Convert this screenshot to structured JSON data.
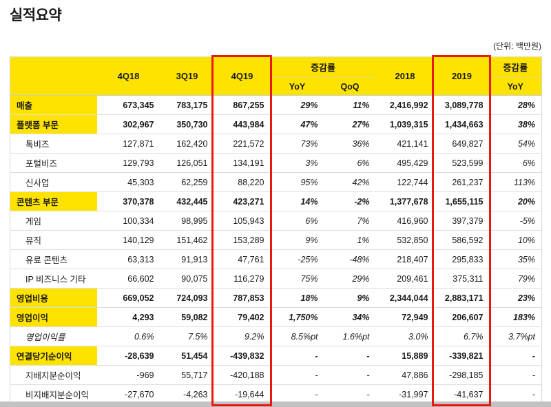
{
  "page": {
    "title": "실적요약",
    "unit_note": "(단위: 백만원)"
  },
  "colors": {
    "header_yellow": "#FFE300",
    "highlight_red": "#E8190F"
  },
  "table": {
    "header": {
      "quarters": [
        "4Q18",
        "3Q19",
        "4Q19"
      ],
      "change_rate_label": "증감률",
      "change_rate_subs": [
        "YoY",
        "QoQ"
      ],
      "years": [
        "2018",
        "2019"
      ],
      "change_rate_label_2": "증감률",
      "change_rate_subs_2": [
        "YoY"
      ]
    },
    "rows": [
      {
        "label": "매출",
        "type": "section",
        "italic": false,
        "values": [
          "673,345",
          "783,175",
          "867,255",
          "29%",
          "11%",
          "2,416,992",
          "3,089,778",
          "28%"
        ]
      },
      {
        "label": "플랫폼 부문",
        "type": "section",
        "italic": false,
        "values": [
          "302,967",
          "350,730",
          "443,984",
          "47%",
          "27%",
          "1,039,315",
          "1,434,663",
          "38%"
        ]
      },
      {
        "label": "톡비즈",
        "type": "sub",
        "italic": false,
        "values": [
          "127,871",
          "162,420",
          "221,572",
          "73%",
          "36%",
          "421,141",
          "649,827",
          "54%"
        ]
      },
      {
        "label": "포털비즈",
        "type": "sub",
        "italic": false,
        "values": [
          "129,793",
          "126,051",
          "134,191",
          "3%",
          "6%",
          "495,429",
          "523,599",
          "6%"
        ]
      },
      {
        "label": "신사업",
        "type": "sub",
        "italic": false,
        "values": [
          "45,303",
          "62,259",
          "88,220",
          "95%",
          "42%",
          "122,744",
          "261,237",
          "113%"
        ]
      },
      {
        "label": "콘텐츠 부문",
        "type": "section",
        "italic": false,
        "values": [
          "370,378",
          "432,445",
          "423,271",
          "14%",
          "-2%",
          "1,377,678",
          "1,655,115",
          "20%"
        ]
      },
      {
        "label": "게임",
        "type": "sub",
        "italic": false,
        "values": [
          "100,334",
          "98,995",
          "105,943",
          "6%",
          "7%",
          "416,960",
          "397,379",
          "-5%"
        ]
      },
      {
        "label": "뮤직",
        "type": "sub",
        "italic": false,
        "values": [
          "140,129",
          "151,462",
          "153,289",
          "9%",
          "1%",
          "532,850",
          "586,592",
          "10%"
        ]
      },
      {
        "label": "유료 콘텐츠",
        "type": "sub",
        "italic": false,
        "values": [
          "63,313",
          "91,913",
          "47,761",
          "-25%",
          "-48%",
          "218,407",
          "295,833",
          "35%"
        ]
      },
      {
        "label": "IP 비즈니스 기타",
        "type": "sub",
        "italic": false,
        "values": [
          "66,602",
          "90,075",
          "116,279",
          "75%",
          "29%",
          "209,461",
          "375,311",
          "79%"
        ]
      },
      {
        "label": "영업비용",
        "type": "section",
        "italic": false,
        "values": [
          "669,052",
          "724,093",
          "787,853",
          "18%",
          "9%",
          "2,344,044",
          "2,883,171",
          "23%"
        ]
      },
      {
        "label": "영업이익",
        "type": "section",
        "italic": false,
        "values": [
          "4,293",
          "59,082",
          "79,402",
          "1,750%",
          "34%",
          "72,949",
          "206,607",
          "183%"
        ]
      },
      {
        "label": "영업이익률",
        "type": "sub",
        "italic": true,
        "values": [
          "0.6%",
          "7.5%",
          "9.2%",
          "8.5%pt",
          "1.6%pt",
          "3.0%",
          "6.7%",
          "3.7%pt"
        ]
      },
      {
        "label": "연결당기순이익",
        "type": "section",
        "italic": false,
        "values": [
          "-28,639",
          "51,454",
          "-439,832",
          "-",
          "-",
          "15,889",
          "-339,821",
          "-"
        ]
      },
      {
        "label": "지배지분순이익",
        "type": "sub",
        "italic": false,
        "values": [
          "-969",
          "55,717",
          "-420,188",
          "-",
          "-",
          "47,886",
          "-298,185",
          "-"
        ]
      },
      {
        "label": "비지배지분순이익",
        "type": "sub",
        "italic": false,
        "values": [
          "-27,670",
          "-4,263",
          "-19,644",
          "-",
          "-",
          "-31,997",
          "-41,637",
          "-"
        ]
      }
    ]
  }
}
